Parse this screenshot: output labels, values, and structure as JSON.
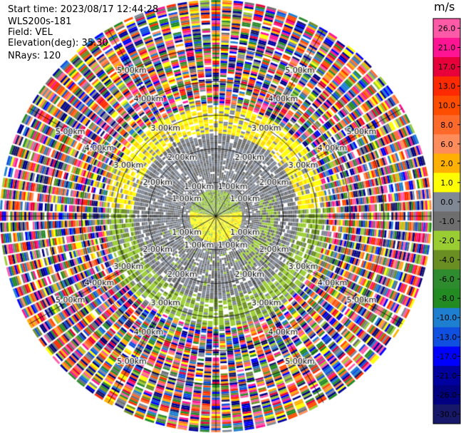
{
  "header": {
    "start_time": "Start time: 2023/08/17 12:44:28",
    "instrument": "WLS200s-181",
    "field": "Field: VEL",
    "elevation": "Elevation(deg): 35.30",
    "nrays": "NRays: 120"
  },
  "chart_data": {
    "type": "ppi",
    "field": "VEL",
    "n_rays": 120,
    "range_rings_km": [
      1,
      2,
      3,
      4,
      5
    ],
    "ring_labels": [
      "1.00km",
      "2.00km",
      "3.00km",
      "4.00km",
      "5.00km"
    ],
    "max_range_km": 6.4,
    "colorbar": {
      "unit": "m/s",
      "ticks": [
        "26.0",
        "21.0",
        "17.0",
        "13.0",
        "10.0",
        "8.0",
        "6.0",
        "2.0",
        "1.0",
        "0.0",
        "-1.0",
        "-2.0",
        "-4.0",
        "-6.0",
        "-8.0",
        "-10.0",
        "-13.0",
        "-17.0",
        "-21.0",
        "-26.0",
        "-30.0"
      ],
      "colors": [
        "#ff5aa8",
        "#ff1493",
        "#e8003a",
        "#ff2a00",
        "#ff4d00",
        "#ff6a2a",
        "#ff8c5a",
        "#ffb000",
        "#ffff00",
        "#808896",
        "#6e6e6e",
        "#9acd32",
        "#6b8e23",
        "#2e8b2e",
        "#228b22",
        "#1e7fd0",
        "#1050e0",
        "#0000ff",
        "#0000a0",
        "#000080",
        "#18186a"
      ]
    },
    "regions": [
      {
        "from_km": 0.0,
        "to_km": 0.7,
        "pattern": "near-center green/yellow"
      },
      {
        "from_km": 0.7,
        "to_km": 2.5,
        "pattern": "mostly grey (~0 m/s)"
      },
      {
        "from_km": 2.5,
        "to_km": 3.2,
        "pattern": "yellow north / green south"
      },
      {
        "from_km": 3.2,
        "to_km": 6.4,
        "pattern": "noise"
      }
    ]
  }
}
